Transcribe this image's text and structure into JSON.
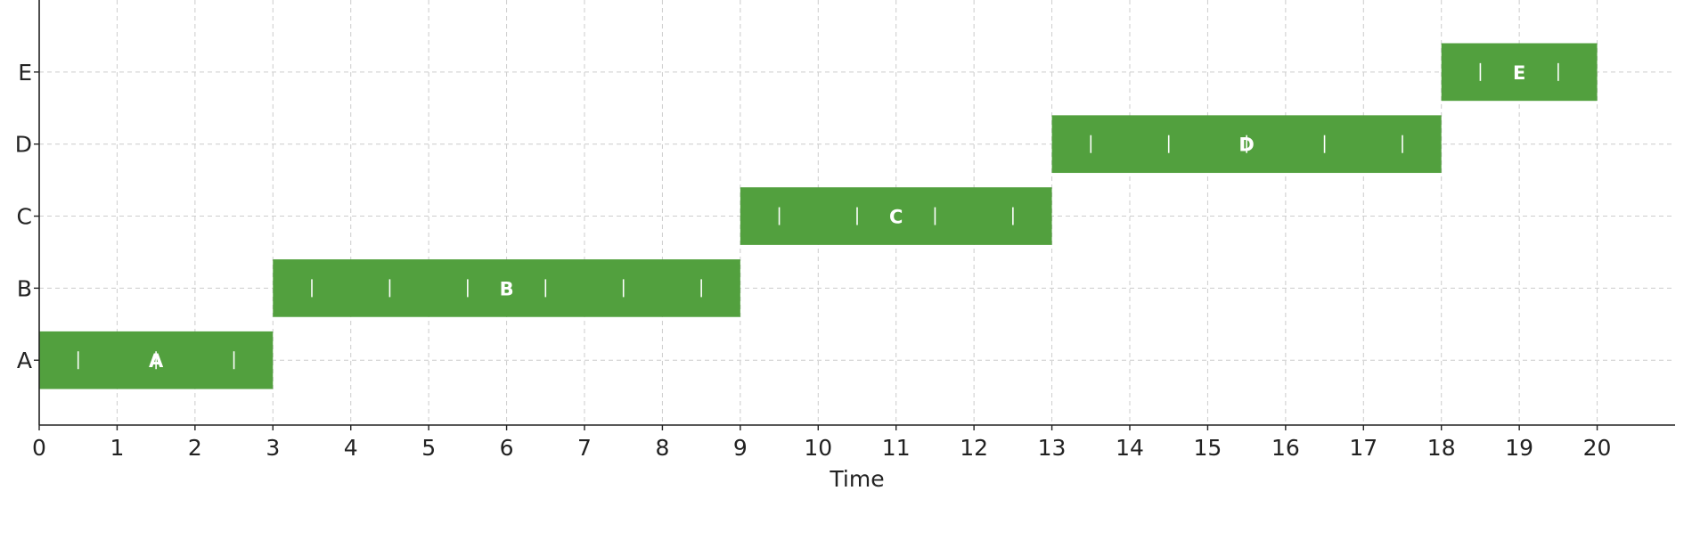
{
  "chart_data": {
    "type": "bar",
    "orientation": "horizontal",
    "layout": "gantt",
    "xlabel": "Time",
    "ylabel": "",
    "title": "",
    "xlim": [
      0,
      21
    ],
    "ylim": [
      -0.9,
      5
    ],
    "x_ticks": [
      0,
      1,
      2,
      3,
      4,
      5,
      6,
      7,
      8,
      9,
      10,
      11,
      12,
      13,
      14,
      15,
      16,
      17,
      18,
      19,
      20
    ],
    "categories": [
      "A",
      "B",
      "C",
      "D",
      "E"
    ],
    "tasks": [
      {
        "name": "A",
        "start": 0,
        "end": 3
      },
      {
        "name": "B",
        "start": 3,
        "end": 9
      },
      {
        "name": "C",
        "start": 9,
        "end": 13
      },
      {
        "name": "D",
        "start": 13,
        "end": 18
      },
      {
        "name": "E",
        "start": 18,
        "end": 20
      }
    ],
    "bar_color": "#52a03e",
    "grid": true,
    "legend": "none"
  }
}
